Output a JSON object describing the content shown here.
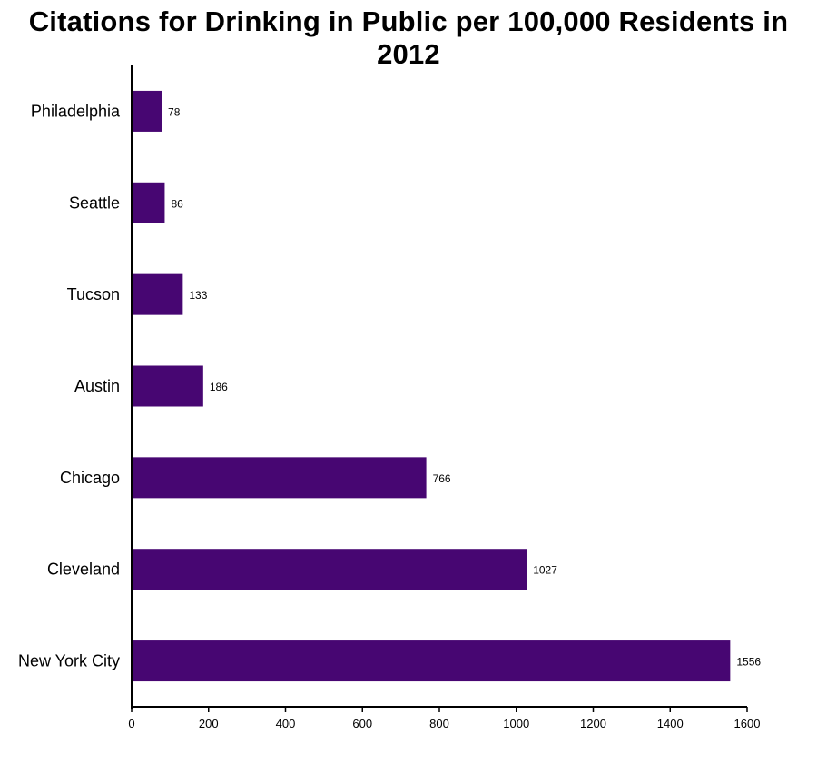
{
  "chart_data": {
    "type": "bar",
    "orientation": "horizontal",
    "title": "Citations for Drinking in Public per 100,000 Residents in 2012",
    "categories": [
      "Philadelphia",
      "Seattle",
      "Tucson",
      "Austin",
      "Chicago",
      "Cleveland",
      "New York City"
    ],
    "values": [
      78,
      86,
      133,
      186,
      766,
      1027,
      1556
    ],
    "xlim": [
      0,
      1600
    ],
    "xticks": [
      0,
      200,
      400,
      600,
      800,
      1000,
      1200,
      1400,
      1600
    ],
    "xtick_labels": [
      "0",
      "200",
      "400",
      "600",
      "800",
      "1000",
      "1200",
      "1400",
      "1600"
    ],
    "grid": false,
    "bar_color": "#470672"
  }
}
